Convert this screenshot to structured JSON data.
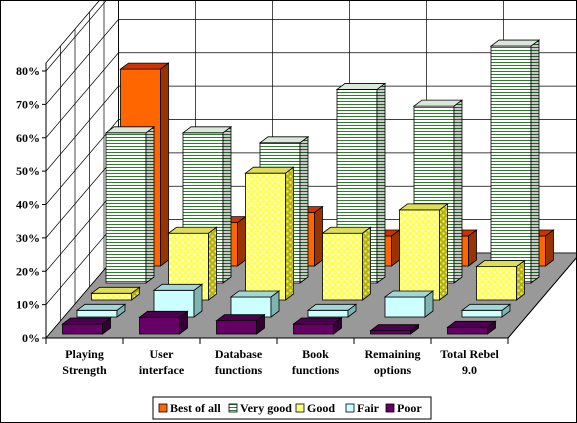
{
  "chart_data": {
    "type": "bar",
    "subtype": "3d-clustered-depth",
    "categories": [
      "Playing Strength",
      "User interface",
      "Database functions",
      "Book functions",
      "Remaining options",
      "Total Rebel 9.0"
    ],
    "category_lines": [
      [
        "Playing",
        "Strength"
      ],
      [
        "User",
        "interface"
      ],
      [
        "Database",
        "functions"
      ],
      [
        "Book",
        "functions"
      ],
      [
        "Remaining",
        "options"
      ],
      [
        "Total Rebel",
        "9.0"
      ]
    ],
    "ylim": [
      0,
      80
    ],
    "yticks": [
      "0%",
      "10%",
      "20%",
      "30%",
      "40%",
      "50%",
      "60%",
      "70%",
      "80%"
    ],
    "series": [
      {
        "name": "Best of all",
        "values": [
          59,
          13,
          16,
          9,
          9,
          9
        ],
        "color": "#ff6600"
      },
      {
        "name": "Very good",
        "values": [
          45,
          45,
          42,
          58,
          53,
          71
        ],
        "color": "#ffffff",
        "pattern": "hlines"
      },
      {
        "name": "Good",
        "values": [
          2,
          20,
          38,
          20,
          27,
          10
        ],
        "color": "#ffff66",
        "pattern": "dots"
      },
      {
        "name": "Fair",
        "values": [
          2,
          8,
          6,
          2,
          6,
          2
        ],
        "color": "#ccffff"
      },
      {
        "name": "Poor",
        "values": [
          3,
          5,
          4,
          3,
          1,
          2
        ],
        "color": "#660066"
      }
    ],
    "legend_position": "bottom",
    "grid": true
  }
}
